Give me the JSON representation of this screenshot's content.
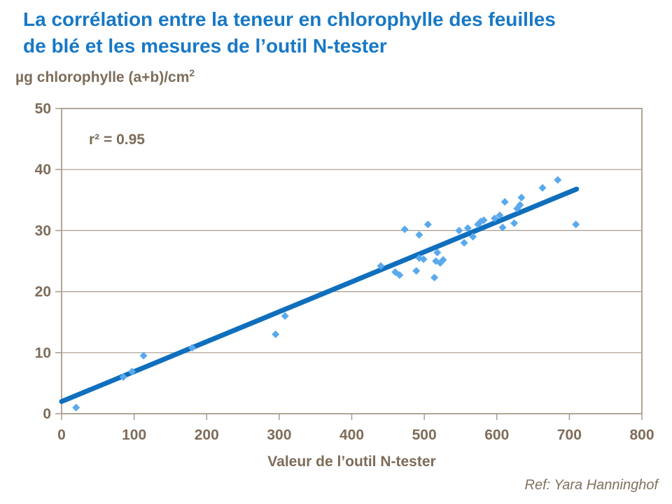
{
  "header": {
    "title": "La corrélation entre la teneur en chlorophylle des feuilles de blé et les mesures de l’outil N-tester"
  },
  "axes": {
    "y_title": "µg chlorophylle (a+b)/cm",
    "y_title_sup": "2",
    "x_title": "Valeur de l’outil N-tester"
  },
  "annotation": {
    "r2": "r² = 0.95"
  },
  "footer": {
    "ref": "Ref: Yara Hanninghof"
  },
  "colors": {
    "title_blue": "#1778C6",
    "point_blue": "#5AA9ED",
    "trend_blue": "#0F6FBD",
    "text_brown": "#7D6C59",
    "grid_tan": "#A89C8B"
  },
  "chart_data": {
    "type": "scatter",
    "title": "La corrélation entre la teneur en chlorophylle des feuilles de blé et les mesures de l’outil N-tester",
    "xlabel": "Valeur de l’outil N-tester",
    "ylabel": "µg chlorophylle (a+b)/cm2",
    "xlim": [
      0,
      800
    ],
    "ylim": [
      0,
      50
    ],
    "xticks": [
      0,
      100,
      200,
      300,
      400,
      500,
      600,
      700,
      800
    ],
    "yticks": [
      0,
      10,
      20,
      30,
      40,
      50
    ],
    "grid": "horizontal",
    "legend": "none",
    "r_squared": 0.95,
    "points": [
      [
        20,
        1.0
      ],
      [
        85,
        6.0
      ],
      [
        97,
        6.9
      ],
      [
        113,
        9.5
      ],
      [
        180,
        10.8
      ],
      [
        295,
        13.0
      ],
      [
        308,
        16.0
      ],
      [
        440,
        24.2
      ],
      [
        460,
        23.2
      ],
      [
        466,
        22.7
      ],
      [
        473,
        30.2
      ],
      [
        489,
        23.4
      ],
      [
        493,
        25.5
      ],
      [
        493,
        29.3
      ],
      [
        499,
        25.3
      ],
      [
        505,
        31.0
      ],
      [
        514,
        22.3
      ],
      [
        516,
        25.0
      ],
      [
        518,
        26.4
      ],
      [
        522,
        24.7
      ],
      [
        526,
        25.2
      ],
      [
        548,
        30.0
      ],
      [
        555,
        28.0
      ],
      [
        560,
        30.4
      ],
      [
        567,
        29.0
      ],
      [
        574,
        31.0
      ],
      [
        578,
        31.5
      ],
      [
        582,
        31.7
      ],
      [
        597,
        32.0
      ],
      [
        604,
        32.5
      ],
      [
        608,
        30.5
      ],
      [
        611,
        34.7
      ],
      [
        624,
        31.2
      ],
      [
        628,
        33.6
      ],
      [
        632,
        34.2
      ],
      [
        634,
        35.4
      ],
      [
        663,
        37.0
      ],
      [
        684,
        38.3
      ],
      [
        709,
        31.0
      ]
    ],
    "trendline": {
      "x1": 0,
      "y1": 2.0,
      "x2": 710,
      "y2": 36.8
    }
  }
}
